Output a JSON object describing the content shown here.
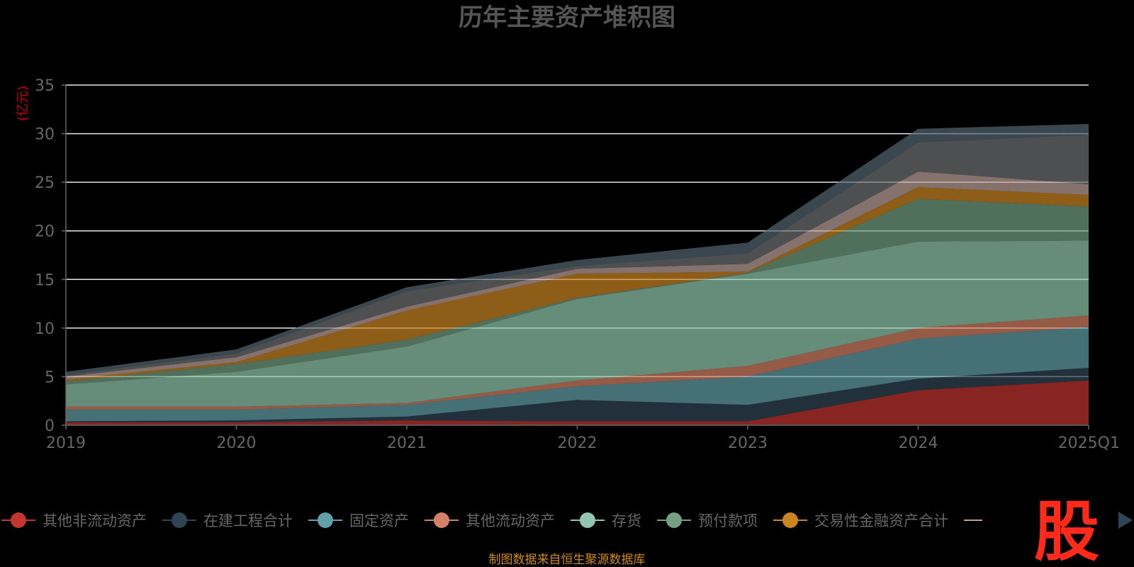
{
  "chart_data": {
    "type": "area",
    "stacked": true,
    "title": "历年主要资产堆积图",
    "unit_label": "(亿元)",
    "x": [
      "2019",
      "2020",
      "2021",
      "2022",
      "2023",
      "2024",
      "2025Q1"
    ],
    "ylim": [
      0,
      35
    ],
    "yticks": [
      0,
      5,
      10,
      15,
      20,
      25,
      30,
      35
    ],
    "grid": true,
    "legend_position": "bottom",
    "series": [
      {
        "name": "其他非流动资产",
        "color": "#c23531",
        "values": [
          0.3,
          0.3,
          0.5,
          0.4,
          0.4,
          3.6,
          4.6
        ]
      },
      {
        "name": "在建工程合计",
        "color": "#2f4554",
        "values": [
          0.1,
          0.2,
          0.4,
          2.2,
          1.7,
          1.2,
          1.3
        ]
      },
      {
        "name": "固定资产",
        "color": "#61a0a8",
        "values": [
          1.2,
          1.1,
          1.2,
          1.4,
          2.9,
          4.1,
          4.2
        ]
      },
      {
        "name": "其他流动资产",
        "color": "#d48265",
        "values": [
          0.3,
          0.3,
          0.2,
          0.6,
          1.1,
          1.1,
          1.2
        ]
      },
      {
        "name": "存货",
        "color": "#91c7ae",
        "values": [
          2.3,
          3.6,
          5.8,
          8.4,
          9.5,
          8.9,
          7.7
        ]
      },
      {
        "name": "预付款项",
        "color": "#749f83",
        "values": [
          0.3,
          0.8,
          0.7,
          0.1,
          0.1,
          4.4,
          3.5
        ]
      },
      {
        "name": "交易性金融资产合计",
        "color": "#ca8622",
        "values": [
          0.2,
          0.2,
          3.0,
          2.5,
          0.1,
          1.2,
          1.2
        ]
      },
      {
        "color": "#bda29a",
        "values": [
          0.3,
          0.5,
          0.4,
          0.5,
          0.8,
          1.6,
          1.1
        ]
      },
      {
        "color": "#6e7074",
        "values": [
          0.2,
          0.4,
          1.6,
          0.3,
          1.1,
          3.0,
          5.1
        ]
      },
      {
        "color": "#546570",
        "values": [
          0.3,
          0.4,
          0.4,
          0.6,
          1.1,
          1.4,
          1.1
        ]
      }
    ]
  },
  "source_note": "制图数据来自恒生聚源数据库",
  "logo_text": "股"
}
